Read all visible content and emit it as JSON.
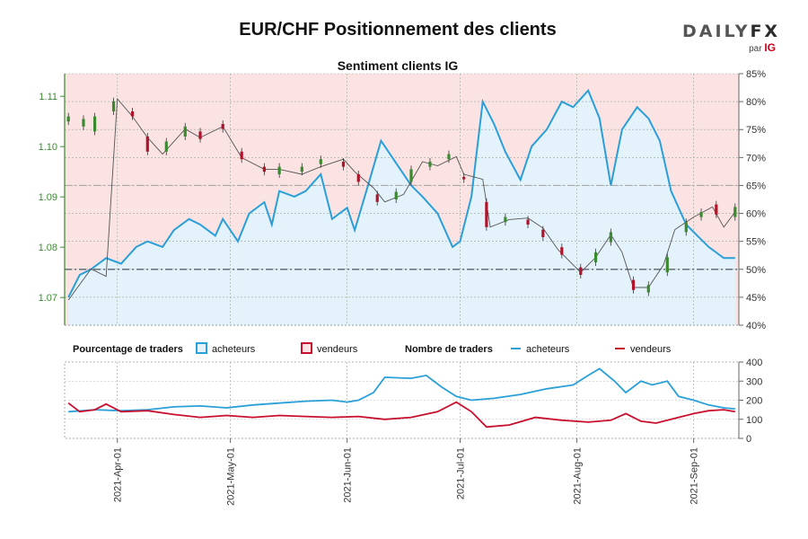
{
  "title": "EUR/CHF Positionnement des clients",
  "subtitle": "Sentiment clients IG",
  "brand": {
    "name_main": "DAILY",
    "name_fx": "FX",
    "by": "par",
    "by_brand": "IG"
  },
  "colors": {
    "buyers": "#2a9fd8",
    "sellers": "#c8102e",
    "candle_up": "#3a8a2e",
    "candle_down": "#b0142b",
    "bg_sellers_zone": "#fbe3e3",
    "bg_buyers_zone": "#e4f2fb",
    "price_axis": "#3a8a2e"
  },
  "legend": {
    "pct_label": "Pourcentage de traders",
    "count_label": "Nombre de traders",
    "buyers": "acheteurs",
    "sellers": "vendeurs"
  },
  "chart_data": [
    {
      "type": "line",
      "name": "price_and_sentiment",
      "y_left": {
        "ticks": [
          1.07,
          1.08,
          1.09,
          1.1,
          1.11
        ],
        "lim": [
          1.0645,
          1.1145
        ]
      },
      "y_right": {
        "ticks": [
          "40%",
          "45%",
          "50%",
          "55%",
          "60%",
          "65%",
          "70%",
          "75%",
          "80%",
          "85%"
        ],
        "lim": [
          40,
          85
        ]
      },
      "reference_lines": [
        50,
        65
      ],
      "grid": true,
      "price_path": [
        [
          "2021-03-19",
          1.0695
        ],
        [
          "2021-03-25",
          1.0757
        ],
        [
          "2021-03-29",
          1.0742
        ],
        [
          "2021-04-01",
          1.1095
        ],
        [
          "2021-04-05",
          1.106
        ],
        [
          "2021-04-09",
          1.1018
        ],
        [
          "2021-04-13",
          1.0985
        ],
        [
          "2021-04-19",
          1.1035
        ],
        [
          "2021-04-23",
          1.1018
        ],
        [
          "2021-04-29",
          1.104
        ],
        [
          "2021-05-04",
          1.0978
        ],
        [
          "2021-05-10",
          1.0955
        ],
        [
          "2021-05-14",
          1.0955
        ],
        [
          "2021-05-20",
          1.0945
        ],
        [
          "2021-05-25",
          1.096
        ],
        [
          "2021-05-31",
          1.0975
        ],
        [
          "2021-06-03",
          1.095
        ],
        [
          "2021-06-08",
          1.0918
        ],
        [
          "2021-06-11",
          1.089
        ],
        [
          "2021-06-16",
          1.0905
        ],
        [
          "2021-06-21",
          1.097
        ],
        [
          "2021-06-25",
          1.0962
        ],
        [
          "2021-06-30",
          1.098
        ],
        [
          "2021-07-02",
          1.0945
        ],
        [
          "2021-07-07",
          1.0935
        ],
        [
          "2021-07-09",
          1.084
        ],
        [
          "2021-07-14",
          1.0855
        ],
        [
          "2021-07-19",
          1.0858
        ],
        [
          "2021-07-23",
          1.0838
        ],
        [
          "2021-07-27",
          1.0795
        ],
        [
          "2021-08-02",
          1.075
        ],
        [
          "2021-08-06",
          1.078
        ],
        [
          "2021-08-10",
          1.0825
        ],
        [
          "2021-08-13",
          1.079
        ],
        [
          "2021-08-16",
          1.072
        ],
        [
          "2021-08-20",
          1.072
        ],
        [
          "2021-08-24",
          1.0765
        ],
        [
          "2021-08-27",
          1.0835
        ],
        [
          "2021-09-01",
          1.086
        ],
        [
          "2021-09-06",
          1.088
        ],
        [
          "2021-09-09",
          1.084
        ],
        [
          "2021-09-12",
          1.087
        ]
      ],
      "buyers_pct": [
        [
          "2021-03-19",
          45
        ],
        [
          "2021-03-22",
          49
        ],
        [
          "2021-03-25",
          50
        ],
        [
          "2021-03-29",
          52
        ],
        [
          "2021-04-02",
          51
        ],
        [
          "2021-04-06",
          54
        ],
        [
          "2021-04-09",
          55
        ],
        [
          "2021-04-13",
          54
        ],
        [
          "2021-04-16",
          57
        ],
        [
          "2021-04-20",
          59
        ],
        [
          "2021-04-23",
          58
        ],
        [
          "2021-04-27",
          56
        ],
        [
          "2021-04-29",
          59
        ],
        [
          "2021-05-03",
          55
        ],
        [
          "2021-05-06",
          60
        ],
        [
          "2021-05-10",
          62
        ],
        [
          "2021-05-12",
          58
        ],
        [
          "2021-05-14",
          64
        ],
        [
          "2021-05-18",
          63
        ],
        [
          "2021-05-21",
          64
        ],
        [
          "2021-05-25",
          67
        ],
        [
          "2021-05-28",
          59
        ],
        [
          "2021-06-01",
          61
        ],
        [
          "2021-06-03",
          57
        ],
        [
          "2021-06-07",
          66
        ],
        [
          "2021-06-10",
          73
        ],
        [
          "2021-06-14",
          69
        ],
        [
          "2021-06-18",
          65
        ],
        [
          "2021-06-21",
          63
        ],
        [
          "2021-06-25",
          60
        ],
        [
          "2021-06-29",
          54
        ],
        [
          "2021-07-01",
          55
        ],
        [
          "2021-07-04",
          63
        ],
        [
          "2021-07-07",
          80
        ],
        [
          "2021-07-10",
          76
        ],
        [
          "2021-07-13",
          71
        ],
        [
          "2021-07-17",
          66
        ],
        [
          "2021-07-20",
          72
        ],
        [
          "2021-07-24",
          75
        ],
        [
          "2021-07-28",
          80
        ],
        [
          "2021-07-31",
          79
        ],
        [
          "2021-08-04",
          82
        ],
        [
          "2021-08-07",
          77
        ],
        [
          "2021-08-10",
          65
        ],
        [
          "2021-08-13",
          75
        ],
        [
          "2021-08-17",
          79
        ],
        [
          "2021-08-20",
          77
        ],
        [
          "2021-08-23",
          73
        ],
        [
          "2021-08-26",
          64
        ],
        [
          "2021-08-30",
          58
        ],
        [
          "2021-09-02",
          56
        ],
        [
          "2021-09-05",
          54
        ],
        [
          "2021-09-09",
          52
        ],
        [
          "2021-09-12",
          52
        ]
      ],
      "candles": [
        {
          "date": "2021-03-19",
          "open": 1.105,
          "close": 1.106
        },
        {
          "date": "2021-03-23",
          "open": 1.104,
          "close": 1.1055
        },
        {
          "date": "2021-03-26",
          "open": 1.103,
          "close": 1.106
        },
        {
          "date": "2021-03-31",
          "open": 1.107,
          "close": 1.109
        },
        {
          "date": "2021-04-05",
          "open": 1.107,
          "close": 1.106
        },
        {
          "date": "2021-04-09",
          "open": 1.102,
          "close": 1.099
        },
        {
          "date": "2021-04-14",
          "open": 1.099,
          "close": 1.101
        },
        {
          "date": "2021-04-19",
          "open": 1.102,
          "close": 1.104
        },
        {
          "date": "2021-04-23",
          "open": 1.103,
          "close": 1.1015
        },
        {
          "date": "2021-04-29",
          "open": 1.1045,
          "close": 1.1035
        },
        {
          "date": "2021-05-04",
          "open": 1.099,
          "close": 1.0975
        },
        {
          "date": "2021-05-10",
          "open": 1.096,
          "close": 1.095
        },
        {
          "date": "2021-05-14",
          "open": 1.0945,
          "close": 1.096
        },
        {
          "date": "2021-05-20",
          "open": 1.095,
          "close": 1.096
        },
        {
          "date": "2021-05-25",
          "open": 1.0965,
          "close": 1.0975
        },
        {
          "date": "2021-05-31",
          "open": 1.097,
          "close": 1.096
        },
        {
          "date": "2021-06-04",
          "open": 1.0945,
          "close": 1.093
        },
        {
          "date": "2021-06-09",
          "open": 1.0905,
          "close": 1.089
        },
        {
          "date": "2021-06-14",
          "open": 1.0895,
          "close": 1.091
        },
        {
          "date": "2021-06-18",
          "open": 1.093,
          "close": 1.0955
        },
        {
          "date": "2021-06-23",
          "open": 1.096,
          "close": 1.097
        },
        {
          "date": "2021-06-28",
          "open": 1.0975,
          "close": 1.0985
        },
        {
          "date": "2021-07-02",
          "open": 1.094,
          "close": 1.0935
        },
        {
          "date": "2021-07-08",
          "open": 1.089,
          "close": 1.084
        },
        {
          "date": "2021-07-13",
          "open": 1.085,
          "close": 1.086
        },
        {
          "date": "2021-07-19",
          "open": 1.0855,
          "close": 1.0845
        },
        {
          "date": "2021-07-23",
          "open": 1.0835,
          "close": 1.082
        },
        {
          "date": "2021-07-28",
          "open": 1.08,
          "close": 1.0785
        },
        {
          "date": "2021-08-02",
          "open": 1.076,
          "close": 1.0745
        },
        {
          "date": "2021-08-06",
          "open": 1.077,
          "close": 1.079
        },
        {
          "date": "2021-08-10",
          "open": 1.081,
          "close": 1.083
        },
        {
          "date": "2021-08-16",
          "open": 1.0735,
          "close": 1.0715
        },
        {
          "date": "2021-08-20",
          "open": 1.071,
          "close": 1.0725
        },
        {
          "date": "2021-08-25",
          "open": 1.075,
          "close": 1.078
        },
        {
          "date": "2021-08-30",
          "open": 1.083,
          "close": 1.085
        },
        {
          "date": "2021-09-03",
          "open": 1.086,
          "close": 1.087
        },
        {
          "date": "2021-09-07",
          "open": 1.0885,
          "close": 1.0865
        },
        {
          "date": "2021-09-12",
          "open": 1.086,
          "close": 1.088
        }
      ]
    },
    {
      "type": "line",
      "name": "trader_counts",
      "y_right": {
        "ticks": [
          0,
          100,
          200,
          300,
          400
        ],
        "lim": [
          0,
          400
        ]
      },
      "x_ticks": [
        "2021-Apr-01",
        "2021-May-01",
        "2021-Jun-01",
        "2021-Jul-01",
        "2021-Aug-01",
        "2021-Sep-01"
      ],
      "series": [
        {
          "name": "acheteurs",
          "points": [
            [
              "2021-03-19",
              140
            ],
            [
              "2021-03-26",
              150
            ],
            [
              "2021-04-02",
              145
            ],
            [
              "2021-04-09",
              150
            ],
            [
              "2021-04-16",
              165
            ],
            [
              "2021-04-23",
              170
            ],
            [
              "2021-04-30",
              160
            ],
            [
              "2021-05-07",
              175
            ],
            [
              "2021-05-14",
              185
            ],
            [
              "2021-05-21",
              195
            ],
            [
              "2021-05-28",
              200
            ],
            [
              "2021-06-01",
              190
            ],
            [
              "2021-06-04",
              200
            ],
            [
              "2021-06-08",
              240
            ],
            [
              "2021-06-11",
              320
            ],
            [
              "2021-06-18",
              315
            ],
            [
              "2021-06-22",
              330
            ],
            [
              "2021-06-26",
              270
            ],
            [
              "2021-06-30",
              220
            ],
            [
              "2021-07-04",
              200
            ],
            [
              "2021-07-10",
              210
            ],
            [
              "2021-07-17",
              230
            ],
            [
              "2021-07-24",
              260
            ],
            [
              "2021-07-31",
              280
            ],
            [
              "2021-08-04",
              330
            ],
            [
              "2021-08-07",
              365
            ],
            [
              "2021-08-11",
              300
            ],
            [
              "2021-08-14",
              240
            ],
            [
              "2021-08-18",
              300
            ],
            [
              "2021-08-21",
              280
            ],
            [
              "2021-08-25",
              300
            ],
            [
              "2021-08-28",
              220
            ],
            [
              "2021-09-01",
              200
            ],
            [
              "2021-09-05",
              175
            ],
            [
              "2021-09-09",
              160
            ],
            [
              "2021-09-12",
              155
            ]
          ]
        },
        {
          "name": "vendeurs",
          "points": [
            [
              "2021-03-19",
              185
            ],
            [
              "2021-03-22",
              140
            ],
            [
              "2021-03-26",
              150
            ],
            [
              "2021-03-29",
              180
            ],
            [
              "2021-04-02",
              140
            ],
            [
              "2021-04-09",
              145
            ],
            [
              "2021-04-16",
              125
            ],
            [
              "2021-04-23",
              110
            ],
            [
              "2021-04-30",
              120
            ],
            [
              "2021-05-07",
              110
            ],
            [
              "2021-05-14",
              120
            ],
            [
              "2021-05-21",
              115
            ],
            [
              "2021-05-28",
              110
            ],
            [
              "2021-06-04",
              115
            ],
            [
              "2021-06-11",
              100
            ],
            [
              "2021-06-18",
              110
            ],
            [
              "2021-06-25",
              140
            ],
            [
              "2021-06-30",
              190
            ],
            [
              "2021-07-04",
              140
            ],
            [
              "2021-07-08",
              60
            ],
            [
              "2021-07-14",
              70
            ],
            [
              "2021-07-21",
              110
            ],
            [
              "2021-07-28",
              95
            ],
            [
              "2021-08-04",
              85
            ],
            [
              "2021-08-10",
              95
            ],
            [
              "2021-08-14",
              130
            ],
            [
              "2021-08-18",
              90
            ],
            [
              "2021-08-22",
              80
            ],
            [
              "2021-08-26",
              100
            ],
            [
              "2021-09-01",
              130
            ],
            [
              "2021-09-05",
              145
            ],
            [
              "2021-09-09",
              150
            ],
            [
              "2021-09-12",
              140
            ]
          ]
        }
      ]
    }
  ]
}
